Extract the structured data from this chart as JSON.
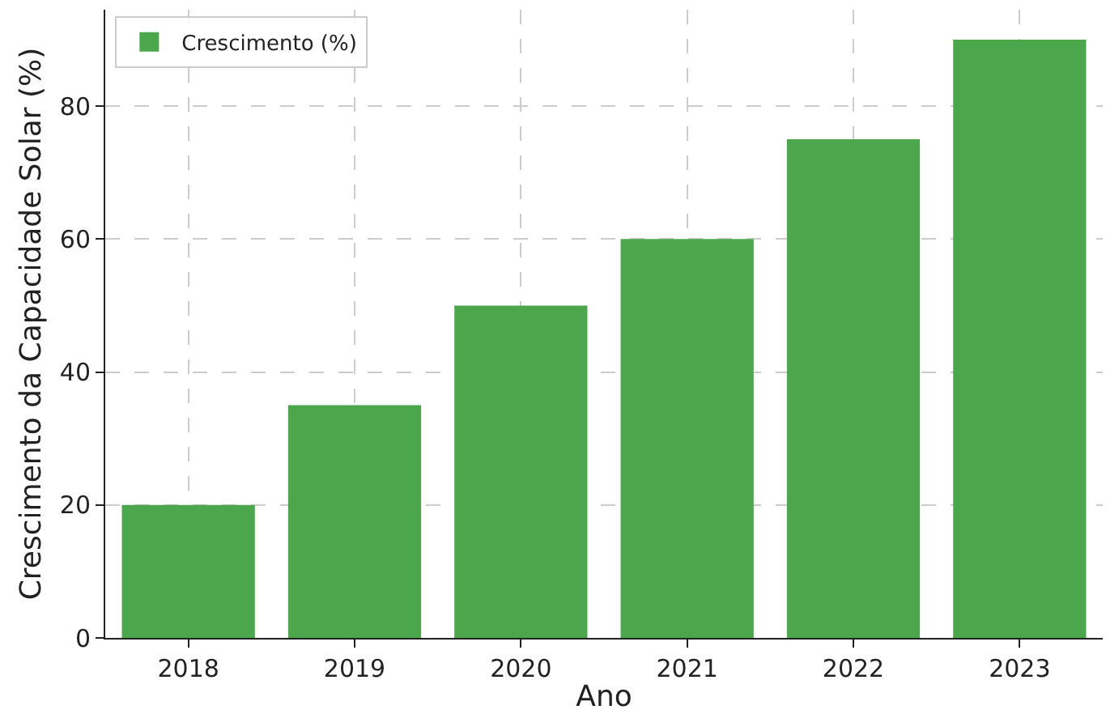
{
  "chart_data": {
    "type": "bar",
    "xlabel": "Ano",
    "ylabel": "Crescimento da Capacidade Solar (%)",
    "categories": [
      "2018",
      "2019",
      "2020",
      "2021",
      "2022",
      "2023"
    ],
    "series": [
      {
        "name": "Crescimento (%)",
        "color": "#4ca64c",
        "values": [
          20,
          35,
          50,
          60,
          75,
          90
        ]
      }
    ],
    "ylim": [
      0,
      94.5
    ],
    "yticks": [
      0,
      20,
      40,
      60,
      80
    ],
    "grid": true,
    "legend": "top left"
  }
}
